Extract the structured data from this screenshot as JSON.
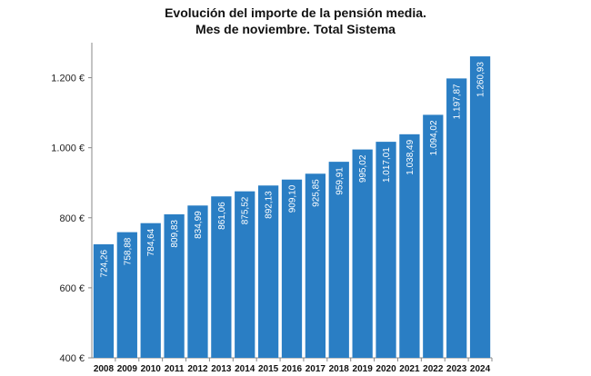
{
  "chart_data": {
    "type": "bar",
    "title": "Evolución del importe de la pensión media.",
    "subtitle": "Mes de noviembre. Total Sistema",
    "xlabel": "",
    "ylabel": "",
    "categories": [
      "2008",
      "2009",
      "2010",
      "2011",
      "2012",
      "2013",
      "2014",
      "2015",
      "2016",
      "2017",
      "2018",
      "2019",
      "2020",
      "2021",
      "2022",
      "2023",
      "2024"
    ],
    "values": [
      724.26,
      758.88,
      784.64,
      809.83,
      834.99,
      861.06,
      875.52,
      892.13,
      909.1,
      925.85,
      959.91,
      995.02,
      1017.01,
      1038.49,
      1094.02,
      1197.87,
      1260.93
    ],
    "data_labels": [
      "724,26",
      "758,88",
      "784,64",
      "809,83",
      "834,99",
      "861,06",
      "875,52",
      "892,13",
      "909,10",
      "925,85",
      "959,91",
      "995,02",
      "1.017,01",
      "1.038,49",
      "1.094,02",
      "1.197,87",
      "1.260,93"
    ],
    "ylim": [
      400,
      1200
    ],
    "yticks": [
      400,
      600,
      800,
      1000,
      1200
    ],
    "ytick_labels": [
      "400 €",
      "600 €",
      "800 €",
      "1.000 €",
      "1.200 €"
    ],
    "grid": false,
    "legend": "none",
    "bar_color": "#2a7ec4"
  }
}
